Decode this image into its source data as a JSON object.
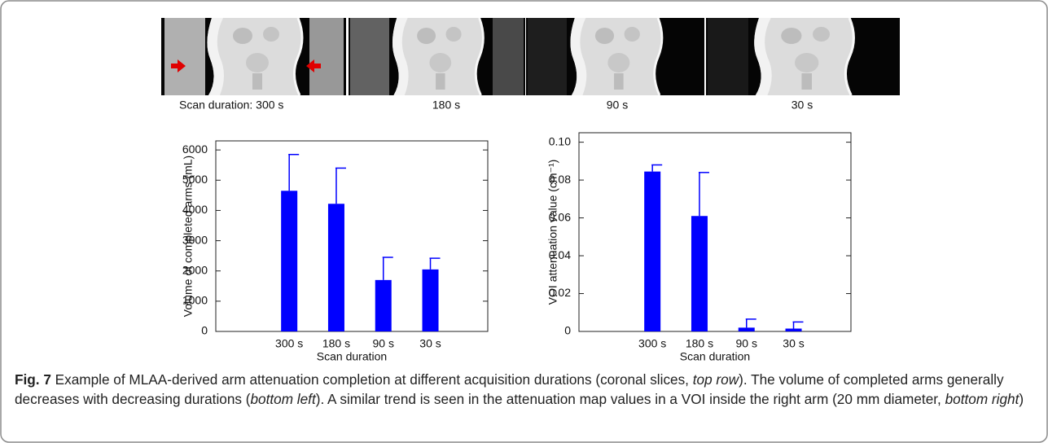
{
  "images": {
    "labels": [
      "Scan duration: 300 s",
      "180 s",
      "90 s",
      "30 s"
    ]
  },
  "chart_data": [
    {
      "type": "bar",
      "ylabel": "Volume of completed arms (mL)",
      "xlabel": "Scan duration",
      "categories": [
        "300 s",
        "180 s",
        "90 s",
        "30 s"
      ],
      "values": [
        4650,
        4220,
        1700,
        2050
      ],
      "errors": [
        1200,
        1180,
        750,
        370
      ],
      "color": "#0000ff",
      "ylim": [
        0,
        6300
      ],
      "yticks": [
        0,
        1000,
        2000,
        3000,
        4000,
        5000,
        6000
      ]
    },
    {
      "type": "bar",
      "ylabel": "VOI attenuation value (cm⁻¹)",
      "xlabel": "Scan duration",
      "categories": [
        "300 s",
        "180 s",
        "90 s",
        "30 s"
      ],
      "values": [
        0.0845,
        0.061,
        0.002,
        0.0015
      ],
      "errors": [
        0.0035,
        0.023,
        0.0045,
        0.0035
      ],
      "color": "#0000ff",
      "ylim": [
        0,
        0.105
      ],
      "yticks": [
        0,
        0.02,
        0.04,
        0.06,
        0.08,
        {
          "value": 0.1,
          "label": "0.10"
        }
      ]
    }
  ],
  "caption": {
    "label": "Fig. 7",
    "segments": [
      " Example of MLAA-derived arm attenuation completion at different acquisition durations (coronal slices, ",
      "top row",
      "). The volume of completed arms generally decreases with decreasing durations (",
      "bottom left",
      "). A similar trend is seen in the attenuation map values in a VOI inside the right arm (20 mm diameter, ",
      "bottom right",
      ")"
    ]
  }
}
